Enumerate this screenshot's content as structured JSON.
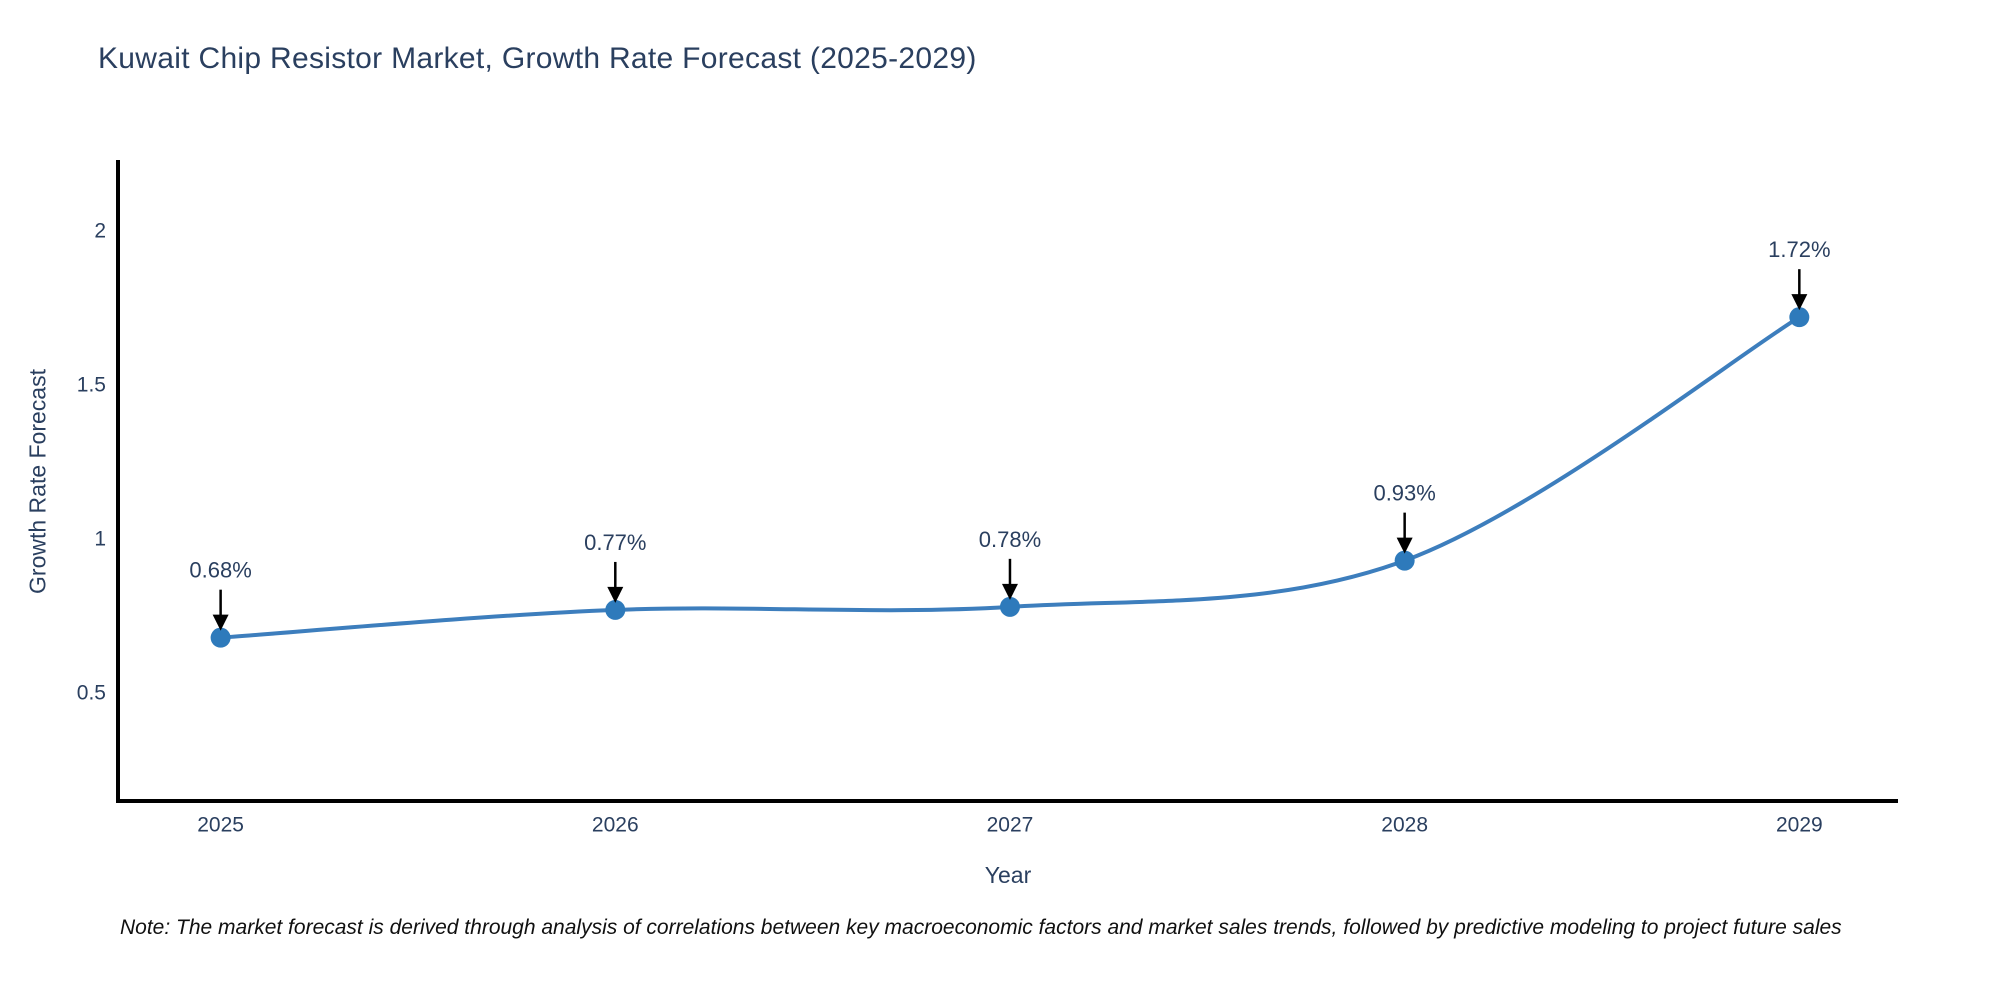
{
  "title": "Kuwait Chip Resistor Market, Growth Rate Forecast (2025-2029)",
  "note": "Note: The market forecast is derived through analysis of correlations between key macroeconomic factors and market sales trends, followed by predictive modeling to project future sales",
  "colors": {
    "text": "#2a3f5f",
    "line": "#3d7ebd",
    "marker": "#2e7abb",
    "axis": "#000000",
    "arrow": "#000000",
    "background": "#ffffff"
  },
  "chart_data": {
    "type": "line",
    "title": "Kuwait Chip Resistor Market, Growth Rate Forecast (2025-2029)",
    "x": [
      2025,
      2026,
      2027,
      2028,
      2029
    ],
    "y": [
      0.68,
      0.77,
      0.78,
      0.93,
      1.72
    ],
    "point_labels": [
      "0.68%",
      "0.77%",
      "0.78%",
      "0.93%",
      "1.72%"
    ],
    "xlabel": "Year",
    "ylabel": "Growth Rate Forecast",
    "xticks": [
      "2025",
      "2026",
      "2027",
      "2028",
      "2029"
    ],
    "xtick_values": [
      2025,
      2026,
      2027,
      2028,
      2029
    ],
    "yticks": [
      "0.5",
      "1",
      "1.5",
      "2"
    ],
    "ytick_values": [
      0.5,
      1,
      1.5,
      2
    ],
    "xlim": [
      2024.74,
      2029.25
    ],
    "ylim": [
      0.15,
      2.23
    ],
    "grid": false,
    "legend": "none",
    "line_shape": "spline",
    "annotation_style": "label-with-down-arrow"
  }
}
